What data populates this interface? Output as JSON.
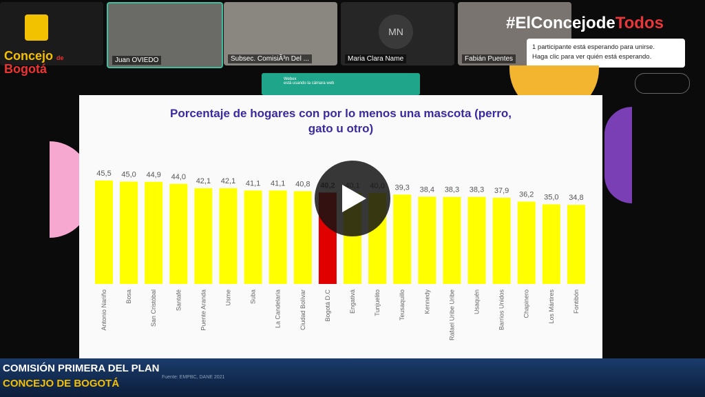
{
  "logo": {
    "line1": "Concejo",
    "line2": "de",
    "line3": "Bogotá"
  },
  "participants": [
    {
      "name": "Juan OVIEDO"
    },
    {
      "name": "Subsec. ComisiÃ³n Del ..."
    },
    {
      "initials": "MN",
      "name": "Maria Clara Name"
    },
    {
      "name": "Fabián Puentes"
    }
  ],
  "hashtag": {
    "part1": "#ElConcejode",
    "part2": "Todos"
  },
  "waiting_notice": {
    "line1": "1 participante está esperando para unirse.",
    "line2": "Haga clic para ver quién está esperando."
  },
  "toast": {
    "title": "Webex",
    "text": "está usando la cámara web"
  },
  "footer": {
    "line1": "COMISIÓN PRIMERA DEL PLAN",
    "line2": "CONCEJO DE BOGOTÁ",
    "source": "Fuente: EMPBC, DANE 2021"
  },
  "chart_data": {
    "type": "bar",
    "title": "Porcentaje de hogares con por lo menos una mascota (perro, gato u otro)",
    "categories": [
      "Antonio Nariño",
      "Bosa",
      "San Cristóbal",
      "Santafé",
      "Puente Aranda",
      "Usme",
      "Suba",
      "La Candelaria",
      "Ciudad Bolívar",
      "Bogotá D.C",
      "Engativá",
      "Tunjuelito",
      "Teusaquillo",
      "Kennedy",
      "Rafael Uribe Uribe",
      "Usaquén",
      "Barrios Unidos",
      "Chapinero",
      "Los Mártires",
      "Fontibón"
    ],
    "values": [
      45.5,
      45.0,
      44.9,
      44.0,
      42.1,
      42.1,
      41.1,
      41.1,
      40.8,
      40.2,
      40.1,
      40.0,
      39.3,
      38.4,
      38.3,
      38.3,
      37.9,
      36.2,
      35.0,
      34.8
    ],
    "value_labels": [
      "45,5",
      "45,0",
      "44,9",
      "44,0",
      "42,1",
      "42,1",
      "41,1",
      "41,1",
      "40,8",
      "40,2",
      "40,1",
      "40,0",
      "39,3",
      "38,4",
      "38,3",
      "38,3",
      "37,9",
      "36,2",
      "35,0",
      "34,8"
    ],
    "colors": [
      "#ffff00",
      "#ffff00",
      "#ffff00",
      "#ffff00",
      "#ffff00",
      "#ffff00",
      "#ffff00",
      "#ffff00",
      "#ffff00",
      "#e00000",
      "#ffff00",
      "#ffff00",
      "#ffff00",
      "#ffff00",
      "#ffff00",
      "#ffff00",
      "#ffff00",
      "#ffff00",
      "#ffff00",
      "#ffff00"
    ]
  }
}
